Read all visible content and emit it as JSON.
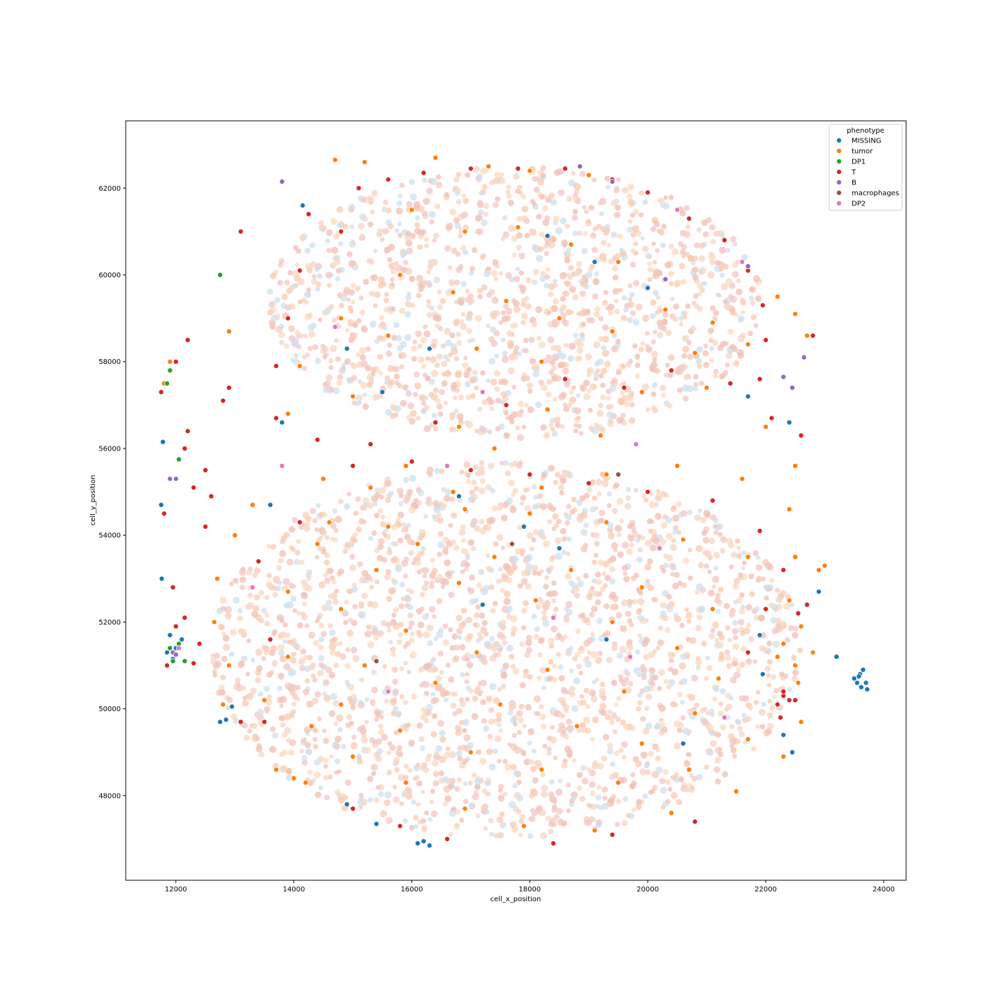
{
  "chart_data": {
    "type": "scatter",
    "title": "",
    "xlabel": "cell_x_position",
    "ylabel": "cell_y_position",
    "xlim": [
      11150,
      24380
    ],
    "ylim": [
      46050,
      63550
    ],
    "xticks": [
      12000,
      14000,
      16000,
      18000,
      20000,
      22000,
      24000
    ],
    "yticks": [
      48000,
      50000,
      52000,
      54000,
      56000,
      58000,
      60000,
      62000
    ],
    "grid": false,
    "legend": {
      "title": "phenotype",
      "placement": "top-right",
      "entries": [
        {
          "name": "MISSING",
          "color": "#1f77b4"
        },
        {
          "name": "tumor",
          "color": "#ff7f0e"
        },
        {
          "name": "DP1",
          "color": "#2ca02c"
        },
        {
          "name": "T",
          "color": "#d62728"
        },
        {
          "name": "B",
          "color": "#9467bd"
        },
        {
          "name": "macrophages",
          "color": "#8c564b"
        },
        {
          "name": "DP2",
          "color": "#e377c2"
        }
      ]
    },
    "point_style": {
      "edgecolor": "#ffffff"
    },
    "series": [
      {
        "name": "MISSING",
        "color": "#1f77b4",
        "points": [
          [
            23500,
            50700
          ],
          [
            23600,
            50800
          ],
          [
            23700,
            50600
          ],
          [
            23650,
            50900
          ],
          [
            23550,
            50600
          ],
          [
            23620,
            50500
          ],
          [
            23720,
            50450
          ],
          [
            23580,
            50750
          ],
          [
            11750,
            54700
          ],
          [
            11780,
            56150
          ],
          [
            11760,
            53000
          ],
          [
            12850,
            49750
          ],
          [
            12950,
            50050
          ],
          [
            12750,
            49700
          ],
          [
            14900,
            47800
          ],
          [
            15400,
            47350
          ],
          [
            16200,
            46950
          ],
          [
            16300,
            46850
          ],
          [
            16100,
            46900
          ],
          [
            22450,
            49000
          ],
          [
            22300,
            49400
          ],
          [
            21900,
            51700
          ],
          [
            21950,
            50800
          ],
          [
            17900,
            54200
          ],
          [
            19100,
            60300
          ],
          [
            16300,
            58300
          ],
          [
            14150,
            61600
          ],
          [
            15500,
            57300
          ],
          [
            13800,
            56600
          ],
          [
            20000,
            59700
          ],
          [
            18300,
            60900
          ],
          [
            14900,
            58300
          ],
          [
            22400,
            56600
          ],
          [
            21700,
            57200
          ],
          [
            19300,
            51600
          ],
          [
            17200,
            52400
          ],
          [
            16800,
            54900
          ],
          [
            13600,
            54700
          ],
          [
            18500,
            53700
          ],
          [
            20600,
            49200
          ],
          [
            23200,
            51200
          ],
          [
            22900,
            52700
          ],
          [
            11900,
            51700
          ],
          [
            12000,
            51400
          ],
          [
            11950,
            51150
          ],
          [
            12100,
            51600
          ],
          [
            11850,
            51300
          ]
        ]
      },
      {
        "name": "tumor",
        "color": "#ff7f0e",
        "points": [
          [
            14700,
            62650
          ],
          [
            15200,
            62600
          ],
          [
            16400,
            62700
          ],
          [
            17300,
            62500
          ],
          [
            18000,
            62400
          ],
          [
            19000,
            62300
          ],
          [
            16000,
            61500
          ],
          [
            16900,
            61000
          ],
          [
            17800,
            61100
          ],
          [
            18700,
            60700
          ],
          [
            19500,
            60300
          ],
          [
            15800,
            60000
          ],
          [
            16700,
            59600
          ],
          [
            17600,
            59400
          ],
          [
            18500,
            59000
          ],
          [
            19400,
            58700
          ],
          [
            20300,
            59200
          ],
          [
            21100,
            58900
          ],
          [
            14800,
            59000
          ],
          [
            15600,
            58600
          ],
          [
            17100,
            58300
          ],
          [
            18200,
            58000
          ],
          [
            20800,
            58200
          ],
          [
            21700,
            58400
          ],
          [
            22700,
            58600
          ],
          [
            22500,
            59100
          ],
          [
            22200,
            59500
          ],
          [
            14100,
            57900
          ],
          [
            13900,
            56800
          ],
          [
            15000,
            57200
          ],
          [
            16800,
            56500
          ],
          [
            18300,
            56900
          ],
          [
            19900,
            57300
          ],
          [
            21000,
            57400
          ],
          [
            22000,
            56500
          ],
          [
            22500,
            55600
          ],
          [
            19200,
            56300
          ],
          [
            17400,
            56000
          ],
          [
            15900,
            55600
          ],
          [
            14500,
            55300
          ],
          [
            13300,
            54700
          ],
          [
            13000,
            54000
          ],
          [
            12700,
            53000
          ],
          [
            12650,
            52000
          ],
          [
            12900,
            51000
          ],
          [
            13500,
            50200
          ],
          [
            14300,
            49600
          ],
          [
            15000,
            48900
          ],
          [
            15900,
            48300
          ],
          [
            16900,
            47700
          ],
          [
            17900,
            47300
          ],
          [
            19100,
            47200
          ],
          [
            20400,
            47600
          ],
          [
            21500,
            48100
          ],
          [
            22300,
            48900
          ],
          [
            22600,
            49700
          ],
          [
            22550,
            50600
          ],
          [
            22300,
            51500
          ],
          [
            22400,
            52500
          ],
          [
            22500,
            53500
          ],
          [
            22400,
            54600
          ],
          [
            21600,
            55300
          ],
          [
            20500,
            55600
          ],
          [
            19300,
            55400
          ],
          [
            18200,
            55100
          ],
          [
            16900,
            54600
          ],
          [
            15600,
            54200
          ],
          [
            14400,
            53800
          ],
          [
            13900,
            52700
          ],
          [
            14800,
            52300
          ],
          [
            15900,
            51800
          ],
          [
            17100,
            51300
          ],
          [
            18300,
            50900
          ],
          [
            19600,
            50400
          ],
          [
            20800,
            49900
          ],
          [
            21700,
            49300
          ],
          [
            20700,
            48600
          ],
          [
            19500,
            48300
          ],
          [
            18200,
            48600
          ],
          [
            17000,
            49000
          ],
          [
            15800,
            49500
          ],
          [
            14800,
            50100
          ],
          [
            13900,
            51200
          ],
          [
            15200,
            51000
          ],
          [
            16400,
            50600
          ],
          [
            17500,
            50100
          ],
          [
            18800,
            49600
          ],
          [
            19900,
            49200
          ],
          [
            21200,
            50700
          ],
          [
            20500,
            51400
          ],
          [
            19400,
            52000
          ],
          [
            18100,
            52500
          ],
          [
            16800,
            52900
          ],
          [
            15400,
            53200
          ],
          [
            14600,
            54300
          ],
          [
            16100,
            53800
          ],
          [
            17400,
            53500
          ],
          [
            18700,
            53200
          ],
          [
            19900,
            52800
          ],
          [
            21100,
            52300
          ],
          [
            21700,
            53500
          ],
          [
            20600,
            53900
          ],
          [
            19300,
            54300
          ],
          [
            18000,
            54500
          ],
          [
            16700,
            55000
          ],
          [
            15300,
            55100
          ],
          [
            13700,
            48600
          ],
          [
            14000,
            48400
          ],
          [
            14200,
            48300
          ],
          [
            22900,
            53200
          ],
          [
            23000,
            53300
          ],
          [
            22600,
            51900
          ],
          [
            22800,
            51300
          ],
          [
            22500,
            51000
          ],
          [
            22200,
            51200
          ],
          [
            12900,
            58700
          ],
          [
            11800,
            57500
          ],
          [
            11900,
            58000
          ],
          [
            12800,
            50100
          ]
        ]
      },
      {
        "name": "DP1",
        "color": "#2ca02c",
        "points": [
          [
            12750,
            60000
          ],
          [
            11900,
            57800
          ],
          [
            12050,
            55750
          ],
          [
            11850,
            57500
          ],
          [
            11950,
            51100
          ],
          [
            12050,
            51500
          ],
          [
            11900,
            51400
          ],
          [
            12150,
            51100
          ]
        ]
      },
      {
        "name": "T",
        "color": "#d62728",
        "points": [
          [
            13100,
            61000
          ],
          [
            14250,
            61400
          ],
          [
            15100,
            62000
          ],
          [
            15600,
            62200
          ],
          [
            16200,
            62350
          ],
          [
            17000,
            62450
          ],
          [
            17800,
            62450
          ],
          [
            18600,
            62450
          ],
          [
            19400,
            62200
          ],
          [
            20000,
            61900
          ],
          [
            20700,
            61300
          ],
          [
            21300,
            60800
          ],
          [
            21700,
            60100
          ],
          [
            21950,
            59300
          ],
          [
            22000,
            58500
          ],
          [
            21400,
            57500
          ],
          [
            20400,
            57800
          ],
          [
            19600,
            57400
          ],
          [
            18600,
            57600
          ],
          [
            17600,
            57000
          ],
          [
            16400,
            56600
          ],
          [
            15300,
            56100
          ],
          [
            14400,
            56200
          ],
          [
            13700,
            56700
          ],
          [
            13700,
            57900
          ],
          [
            13900,
            59000
          ],
          [
            14100,
            60100
          ],
          [
            14800,
            61000
          ],
          [
            12200,
            58500
          ],
          [
            12000,
            58000
          ],
          [
            11750,
            57300
          ],
          [
            12900,
            57400
          ],
          [
            12800,
            57100
          ],
          [
            12200,
            56400
          ],
          [
            12150,
            56000
          ],
          [
            11800,
            54500
          ],
          [
            12500,
            55500
          ],
          [
            12300,
            55100
          ],
          [
            12600,
            54900
          ],
          [
            12500,
            54200
          ],
          [
            11950,
            52800
          ],
          [
            12150,
            52100
          ],
          [
            12000,
            51900
          ],
          [
            11850,
            51000
          ],
          [
            12400,
            51500
          ],
          [
            12300,
            51050
          ],
          [
            13500,
            49700
          ],
          [
            13100,
            49700
          ],
          [
            13600,
            51600
          ],
          [
            13400,
            53400
          ],
          [
            14100,
            54300
          ],
          [
            15000,
            55600
          ],
          [
            16000,
            55700
          ],
          [
            17000,
            55500
          ],
          [
            18000,
            55400
          ],
          [
            19000,
            55200
          ],
          [
            20000,
            55000
          ],
          [
            21100,
            54800
          ],
          [
            21900,
            54100
          ],
          [
            22300,
            53200
          ],
          [
            22000,
            52300
          ],
          [
            21700,
            51300
          ],
          [
            22300,
            50300
          ],
          [
            22400,
            50200
          ],
          [
            22200,
            50100
          ],
          [
            22500,
            50200
          ],
          [
            22250,
            49800
          ],
          [
            22300,
            50400
          ],
          [
            15000,
            47700
          ],
          [
            15800,
            47300
          ],
          [
            16600,
            47000
          ],
          [
            18400,
            46900
          ],
          [
            19400,
            47100
          ],
          [
            20800,
            47400
          ],
          [
            22700,
            52400
          ],
          [
            22550,
            52200
          ],
          [
            22800,
            58600
          ],
          [
            21900,
            57600
          ],
          [
            22100,
            56700
          ],
          [
            22600,
            56300
          ]
        ]
      },
      {
        "name": "B",
        "color": "#9467bd",
        "points": [
          [
            13800,
            62150
          ],
          [
            18850,
            62500
          ],
          [
            19400,
            62150
          ],
          [
            22650,
            58100
          ],
          [
            22300,
            57650
          ],
          [
            22450,
            57400
          ],
          [
            11900,
            55300
          ],
          [
            12000,
            55300
          ],
          [
            21700,
            60200
          ],
          [
            20300,
            59900
          ],
          [
            11950,
            51300
          ],
          [
            12000,
            51250
          ]
        ]
      },
      {
        "name": "macrophages",
        "color": "#8c564b",
        "points": [
          [
            17700,
            53800
          ],
          [
            19500,
            55400
          ],
          [
            15400,
            51100
          ]
        ]
      },
      {
        "name": "DP2",
        "color": "#e377c2",
        "points": [
          [
            21600,
            60300
          ],
          [
            20500,
            61500
          ],
          [
            17200,
            57300
          ],
          [
            19800,
            56100
          ],
          [
            14700,
            58800
          ],
          [
            16600,
            55600
          ],
          [
            18400,
            52100
          ],
          [
            20200,
            53700
          ],
          [
            13300,
            52800
          ],
          [
            15600,
            50400
          ],
          [
            19700,
            51200
          ],
          [
            12050,
            51400
          ],
          [
            13800,
            55600
          ],
          [
            21300,
            49800
          ]
        ]
      }
    ]
  }
}
